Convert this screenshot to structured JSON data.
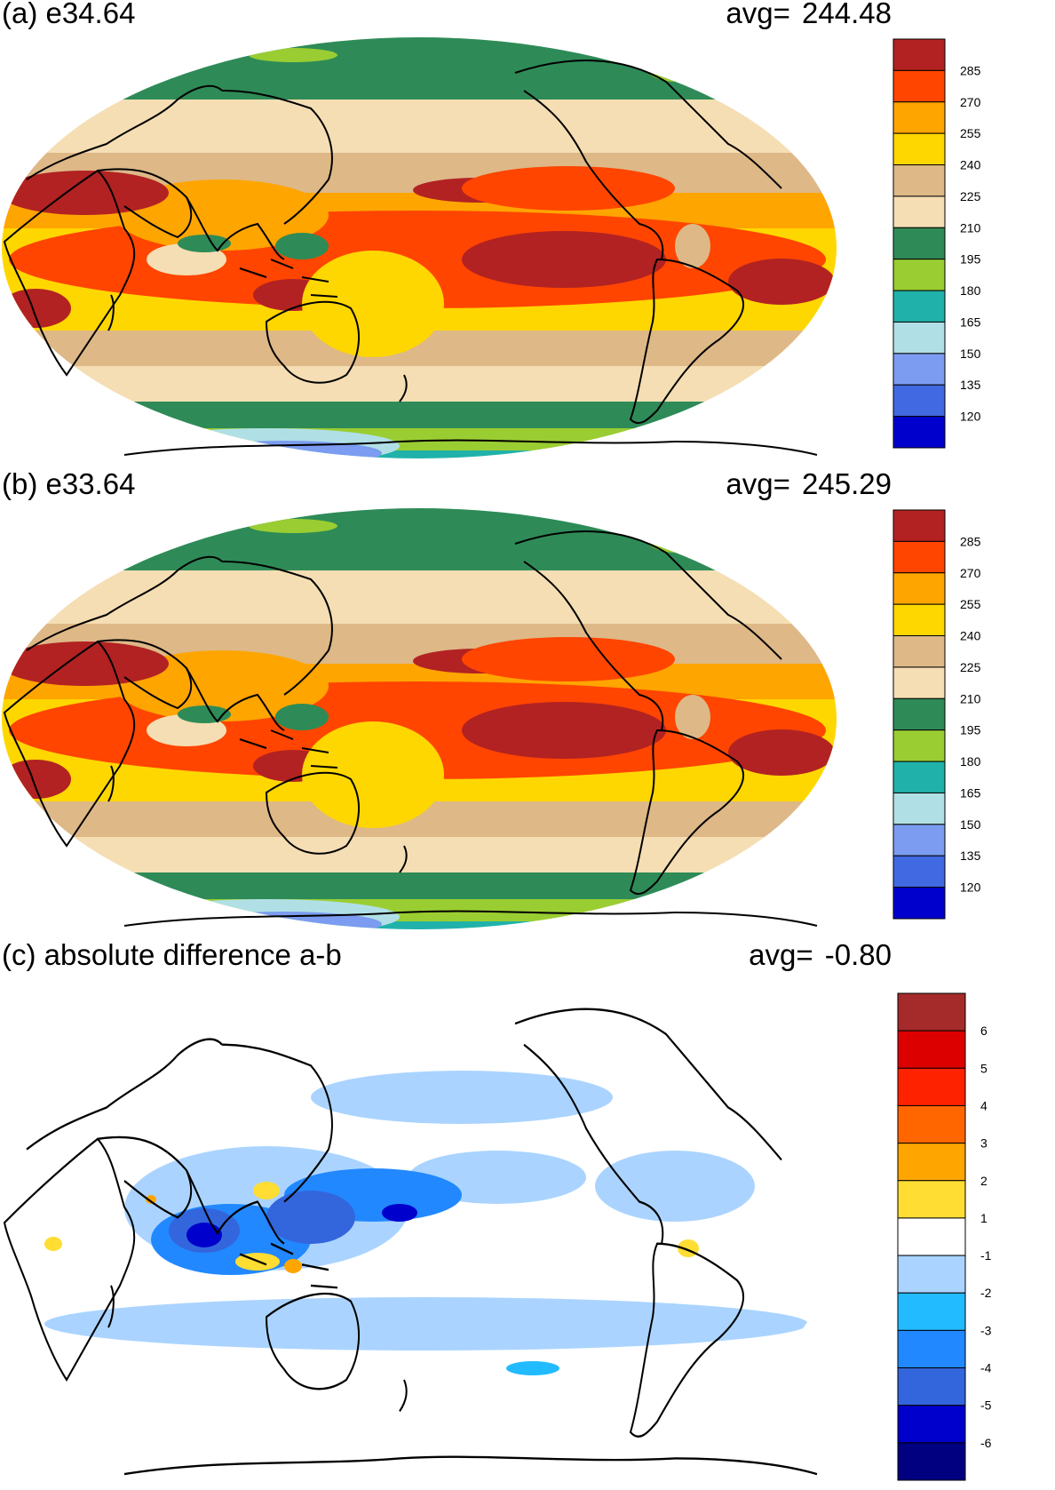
{
  "chart_data": [
    {
      "type": "heatmap",
      "title": "(a) e34.64",
      "avg_label": "avg=  244.48",
      "avg": 244.48,
      "projection": "robinson",
      "legend_position": "right",
      "colorbar": {
        "ticks": [
          "285",
          "270",
          "255",
          "240",
          "225",
          "210",
          "195",
          "180",
          "165",
          "150",
          "135",
          "120"
        ],
        "colors": [
          "#b22222",
          "#ff4500",
          "#ffa500",
          "#ffd700",
          "#deb887",
          "#f5deb3",
          "#2e8b57",
          "#9acd32",
          "#20b2aa",
          "#b0e0e6",
          "#7b9cf0",
          "#4169e1",
          "#0000cd"
        ]
      }
    },
    {
      "type": "heatmap",
      "title": "(b) e33.64",
      "avg_label": "avg=  245.29",
      "avg": 245.29,
      "projection": "robinson",
      "legend_position": "right",
      "colorbar": {
        "ticks": [
          "285",
          "270",
          "255",
          "240",
          "225",
          "210",
          "195",
          "180",
          "165",
          "150",
          "135",
          "120"
        ],
        "colors": [
          "#b22222",
          "#ff4500",
          "#ffa500",
          "#ffd700",
          "#deb887",
          "#f5deb3",
          "#2e8b57",
          "#9acd32",
          "#20b2aa",
          "#b0e0e6",
          "#7b9cf0",
          "#4169e1",
          "#0000cd"
        ]
      }
    },
    {
      "type": "heatmap",
      "title": "(c) absolute difference a-b",
      "avg_label": "avg=   -0.80",
      "avg": -0.8,
      "projection": "robinson",
      "legend_position": "right",
      "colorbar": {
        "ticks": [
          "6",
          "5",
          "4",
          "3",
          "2",
          "1",
          "-1",
          "-2",
          "-3",
          "-4",
          "-5",
          "-6"
        ],
        "colors": [
          "#a52a2a",
          "#dd0000",
          "#ff2200",
          "#ff6600",
          "#ffa500",
          "#ffdd33",
          "#ffffff",
          "#aad4ff",
          "#22bbff",
          "#2288ff",
          "#3366dd",
          "#0000cc",
          "#000080"
        ]
      }
    }
  ]
}
